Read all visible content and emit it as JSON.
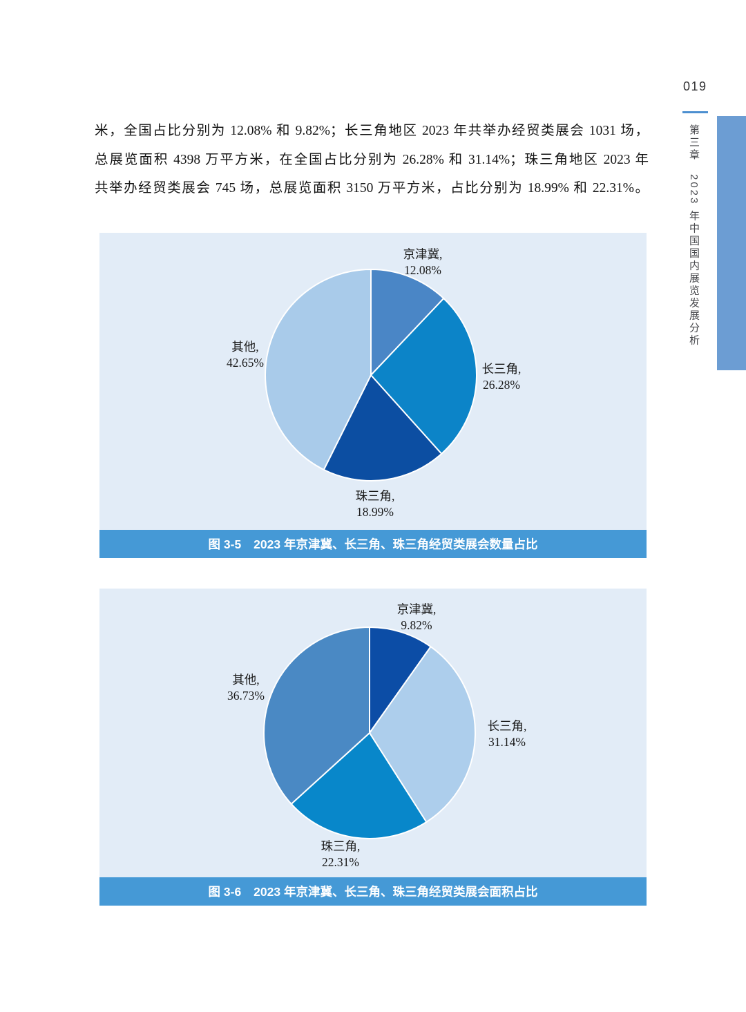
{
  "page": {
    "number": "019",
    "sidebar_title": "第三章　2023 年中国国内展览发展分析"
  },
  "paragraph": {
    "line1": "米，全国占比分别为 12.08% 和 9.82%；长三角地区 2023 年共举办经贸类展会 1031 场，",
    "line2": "总展览面积 4398 万平方米，在全国占比分别为 26.28% 和 31.14%；珠三角地区 2023 年",
    "line3": "共举办经贸类展会 745 场，总展览面积 3150 万平方米，占比分别为 18.99% 和 22.31%。"
  },
  "chart_data": [
    {
      "type": "pie",
      "figure_label": "图 3-5",
      "title": "2023 年京津冀、长三角、珠三角经贸类展会数量占比",
      "categories": [
        "京津冀",
        "长三角",
        "珠三角",
        "其他"
      ],
      "values": [
        12.08,
        26.28,
        18.99,
        42.65
      ],
      "unit": "percent",
      "start_angle": "12-oclock",
      "direction": "clockwise",
      "colors": [
        "#4A86C6",
        "#0C84C8",
        "#0C4EA2",
        "#A9CBEA"
      ],
      "slice_labels": [
        {
          "line1": "京津冀,",
          "line2": "12.08%"
        },
        {
          "line1": "长三角,",
          "line2": "26.28%"
        },
        {
          "line1": "珠三角,",
          "line2": "18.99%"
        },
        {
          "line1": "其他,",
          "line2": "42.65%"
        }
      ]
    },
    {
      "type": "pie",
      "figure_label": "图 3-6",
      "title": "2023 年京津冀、长三角、珠三角经贸类展会面积占比",
      "categories": [
        "京津冀",
        "长三角",
        "珠三角",
        "其他"
      ],
      "values": [
        9.82,
        31.14,
        22.31,
        36.73
      ],
      "unit": "percent",
      "start_angle": "12-oclock",
      "direction": "clockwise",
      "colors": [
        "#0C4DA6",
        "#ADCEEC",
        "#0887CA",
        "#4A89C4"
      ],
      "slice_labels": [
        {
          "line1": "京津冀,",
          "line2": "9.82%"
        },
        {
          "line1": "长三角,",
          "line2": "31.14%"
        },
        {
          "line1": "珠三角,",
          "line2": "22.31%"
        },
        {
          "line1": "其他,",
          "line2": "36.73%"
        }
      ]
    }
  ]
}
